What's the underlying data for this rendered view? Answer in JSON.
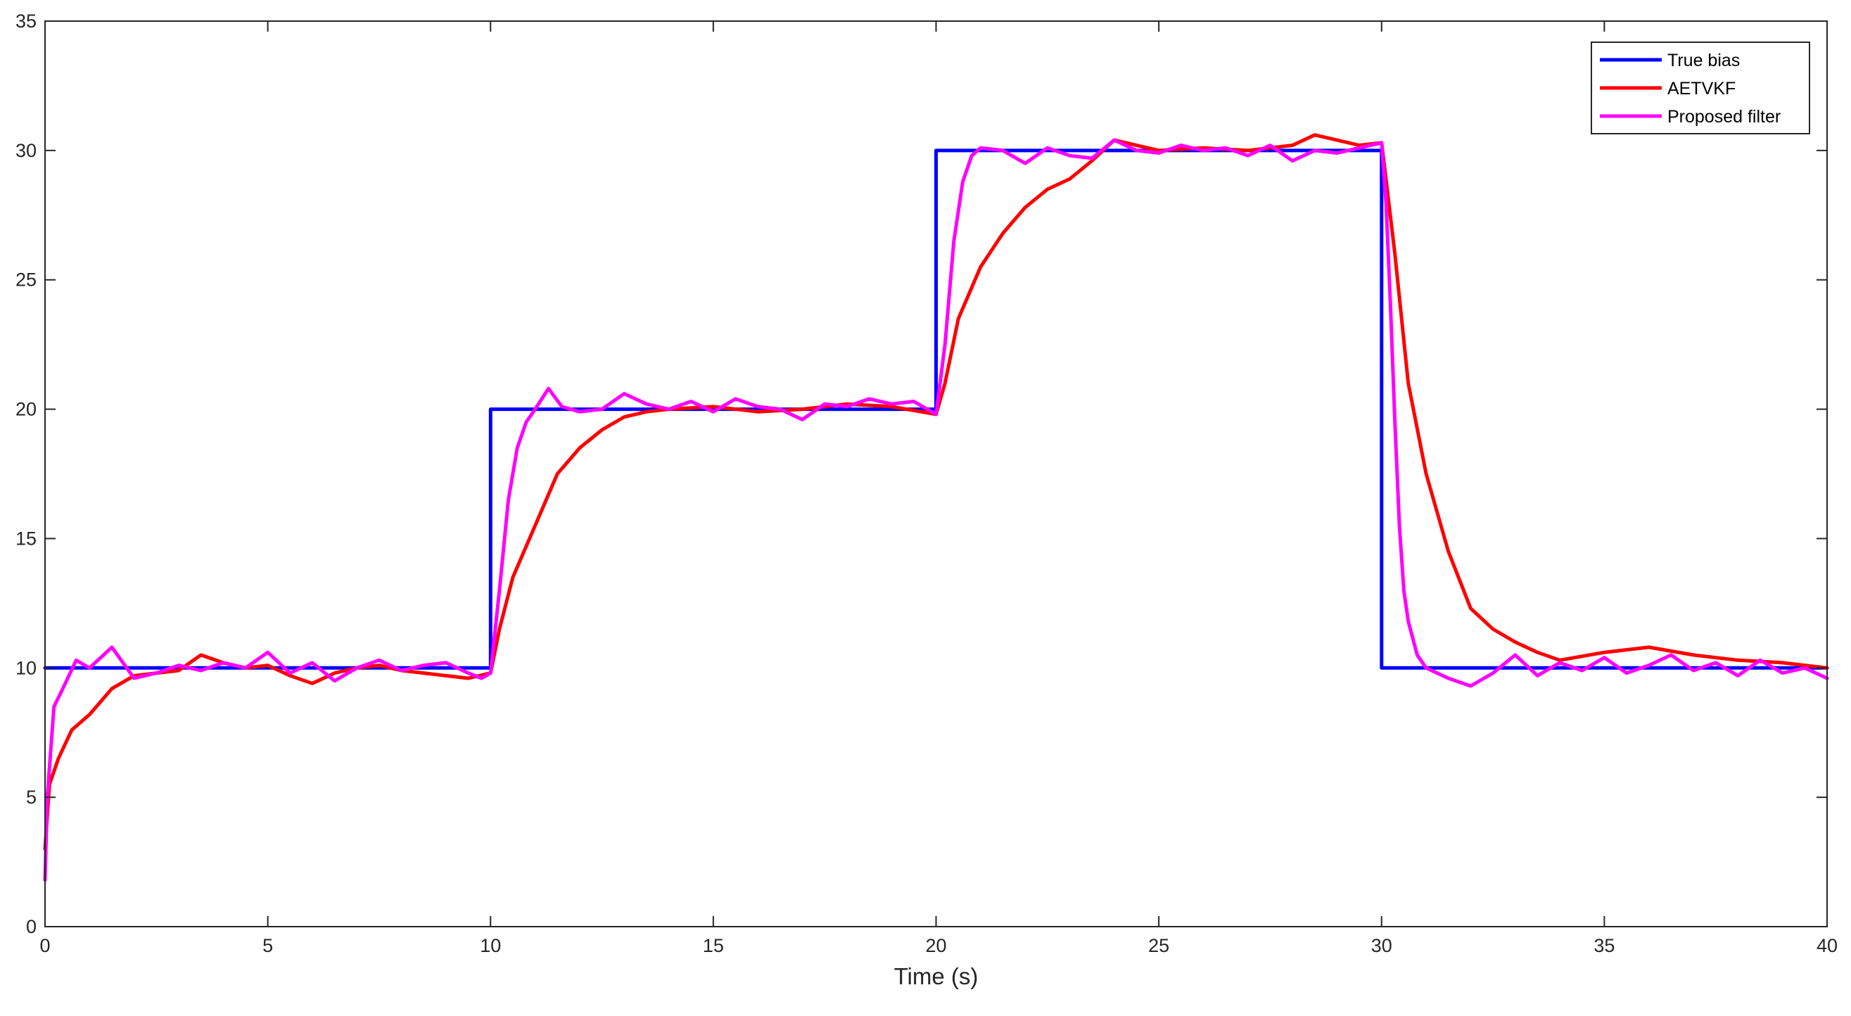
{
  "chart_data": {
    "type": "line",
    "title": "",
    "xlabel": "Time (s)",
    "ylabel": "",
    "xlim": [
      0,
      40
    ],
    "ylim": [
      0,
      35
    ],
    "xticks": [
      0,
      5,
      10,
      15,
      20,
      25,
      30,
      35,
      40
    ],
    "yticks": [
      0,
      5,
      10,
      15,
      20,
      25,
      30,
      35
    ],
    "grid": false,
    "legend_position": "top-right",
    "series": [
      {
        "name": "True bias",
        "color": "#0000ff",
        "x": [
          0,
          10,
          10,
          20,
          20,
          30,
          30,
          40
        ],
        "y": [
          10,
          10,
          20,
          20,
          30,
          30,
          10,
          10
        ]
      },
      {
        "name": "AETVKF",
        "color": "#ff0000",
        "x": [
          0,
          0.1,
          0.3,
          0.6,
          1.0,
          1.5,
          2.0,
          2.5,
          3.0,
          3.5,
          4.0,
          4.5,
          5.0,
          5.5,
          6.0,
          6.5,
          7.0,
          7.5,
          8.0,
          8.5,
          9.0,
          9.5,
          10.0,
          10.2,
          10.5,
          11.0,
          11.5,
          12.0,
          12.5,
          13.0,
          13.5,
          14.0,
          15.0,
          16.0,
          17.0,
          18.0,
          19.0,
          20.0,
          20.2,
          20.5,
          21.0,
          21.5,
          22.0,
          22.5,
          23.0,
          23.5,
          24.0,
          25.0,
          26.0,
          27.0,
          28.0,
          28.5,
          29.0,
          29.5,
          30.0,
          30.3,
          30.6,
          31.0,
          31.5,
          32.0,
          32.5,
          33.0,
          33.5,
          34.0,
          35.0,
          36.0,
          37.0,
          38.0,
          39.0,
          40.0
        ],
        "y": [
          3.0,
          5.5,
          6.5,
          7.6,
          8.2,
          9.2,
          9.7,
          9.8,
          9.9,
          10.5,
          10.2,
          10.0,
          10.1,
          9.7,
          9.4,
          9.8,
          10.0,
          10.1,
          9.9,
          9.8,
          9.7,
          9.6,
          9.8,
          11.5,
          13.5,
          15.5,
          17.5,
          18.5,
          19.2,
          19.7,
          19.9,
          20.0,
          20.1,
          19.9,
          20.0,
          20.2,
          20.1,
          19.8,
          21.0,
          23.5,
          25.5,
          26.8,
          27.8,
          28.5,
          28.9,
          29.6,
          30.4,
          30.0,
          30.1,
          30.0,
          30.2,
          30.6,
          30.4,
          30.2,
          30.3,
          26.0,
          21.0,
          17.5,
          14.5,
          12.3,
          11.5,
          11.0,
          10.6,
          10.3,
          10.6,
          10.8,
          10.5,
          10.3,
          10.2,
          10.0
        ]
      },
      {
        "name": "Proposed filter",
        "color": "#ff00ff",
        "x": [
          0,
          0.05,
          0.2,
          0.4,
          0.7,
          1.0,
          1.5,
          2.0,
          2.5,
          3.0,
          3.5,
          4.0,
          4.5,
          5.0,
          5.5,
          6.0,
          6.5,
          7.0,
          7.5,
          8.0,
          8.5,
          9.0,
          9.5,
          9.8,
          10.0,
          10.2,
          10.4,
          10.6,
          10.8,
          11.0,
          11.3,
          11.6,
          12.0,
          12.5,
          13.0,
          13.5,
          14.0,
          14.5,
          15.0,
          15.5,
          16.0,
          16.5,
          17.0,
          17.5,
          18.0,
          18.5,
          19.0,
          19.5,
          20.0,
          20.2,
          20.4,
          20.6,
          20.8,
          21.0,
          21.5,
          22.0,
          22.5,
          23.0,
          23.5,
          24.0,
          24.5,
          25.0,
          25.5,
          26.0,
          26.5,
          27.0,
          27.5,
          28.0,
          28.5,
          29.0,
          29.5,
          30.0,
          30.1,
          30.2,
          30.3,
          30.4,
          30.5,
          30.6,
          30.8,
          31.0,
          31.5,
          32.0,
          32.5,
          33.0,
          33.5,
          34.0,
          34.5,
          35.0,
          35.5,
          36.0,
          36.5,
          37.0,
          37.5,
          38.0,
          38.5,
          39.0,
          39.5,
          40.0
        ],
        "y": [
          1.8,
          5.0,
          8.5,
          9.2,
          10.3,
          10.0,
          10.8,
          9.6,
          9.8,
          10.1,
          9.9,
          10.2,
          10.0,
          10.6,
          9.8,
          10.2,
          9.5,
          10.0,
          10.3,
          9.9,
          10.1,
          10.2,
          9.8,
          9.6,
          9.8,
          13.0,
          16.5,
          18.5,
          19.5,
          20.0,
          20.8,
          20.1,
          19.9,
          20.0,
          20.6,
          20.2,
          20.0,
          20.3,
          19.9,
          20.4,
          20.1,
          20.0,
          19.6,
          20.2,
          20.1,
          20.4,
          20.2,
          20.3,
          19.8,
          22.5,
          26.5,
          28.8,
          29.8,
          30.1,
          30.0,
          29.5,
          30.1,
          29.8,
          29.7,
          30.4,
          30.0,
          29.9,
          30.2,
          30.0,
          30.1,
          29.8,
          30.2,
          29.6,
          30.0,
          29.9,
          30.1,
          30.3,
          28.0,
          24.0,
          19.5,
          15.5,
          13.0,
          11.8,
          10.5,
          10.0,
          9.6,
          9.3,
          9.8,
          10.5,
          9.7,
          10.2,
          9.9,
          10.4,
          9.8,
          10.1,
          10.5,
          9.9,
          10.2,
          9.7,
          10.3,
          9.8,
          10.0,
          9.6
        ]
      }
    ]
  }
}
